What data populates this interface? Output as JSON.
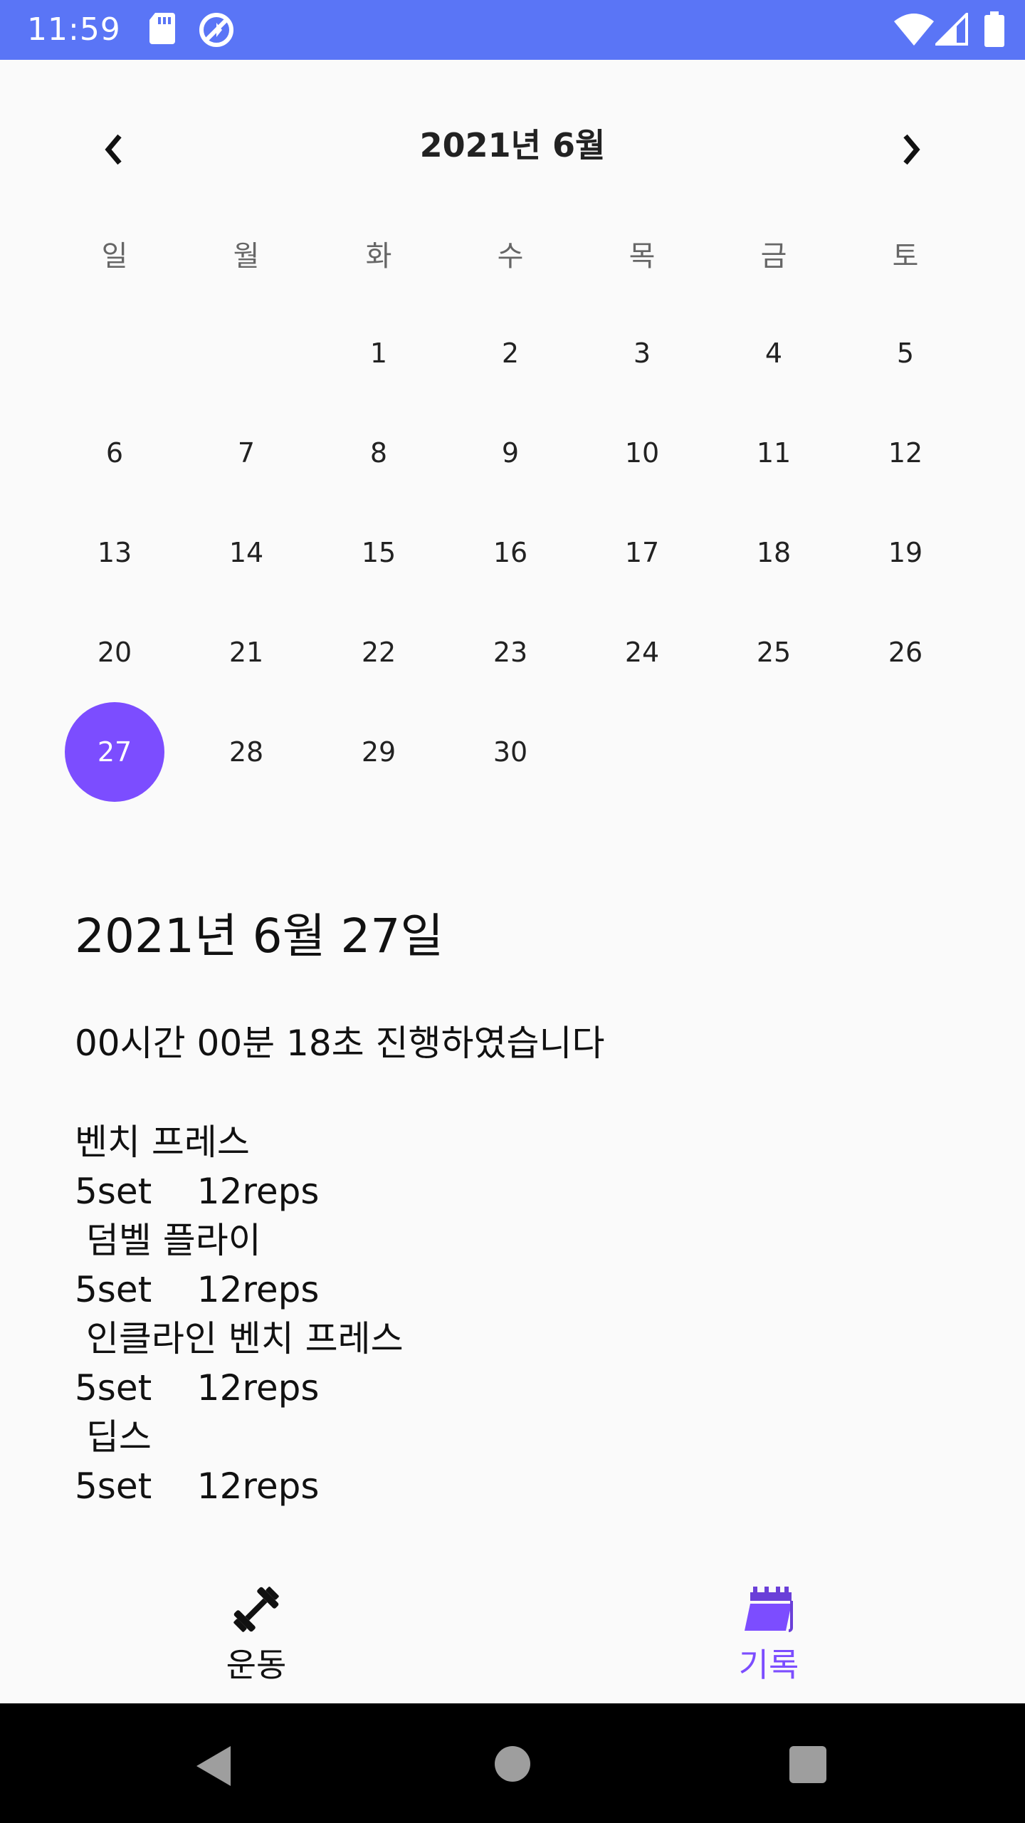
{
  "status_bar": {
    "time": "11:59",
    "background": "#5a75f6",
    "icons": [
      "sd-card-icon",
      "sync-icon",
      "wifi-icon",
      "signal-icon",
      "battery-icon"
    ]
  },
  "calendar": {
    "month_title": "2021년 6월",
    "prev_icon": "chevron-left-icon",
    "next_icon": "chevron-right-icon",
    "weekdays": [
      "일",
      "월",
      "화",
      "수",
      "목",
      "금",
      "토"
    ],
    "weeks": [
      [
        "",
        "",
        "1",
        "2",
        "3",
        "4",
        "5"
      ],
      [
        "6",
        "7",
        "8",
        "9",
        "10",
        "11",
        "12"
      ],
      [
        "13",
        "14",
        "15",
        "16",
        "17",
        "18",
        "19"
      ],
      [
        "20",
        "21",
        "22",
        "23",
        "24",
        "25",
        "26"
      ],
      [
        "27",
        "28",
        "29",
        "30",
        "",
        "",
        ""
      ]
    ],
    "selected_day": "27",
    "selected_color": "#7c4dff"
  },
  "detail": {
    "date": "2021년 6월 27일",
    "duration": "00시간 00분 18초 진행하였습니다",
    "lines": [
      "벤치 프레스",
      "5set    12reps",
      " 덤벨 플라이",
      "5set    12reps",
      " 인클라인 벤치 프레스",
      "5set    12reps",
      " 딥스",
      "5set    12reps"
    ]
  },
  "bottom_nav": {
    "items": [
      {
        "label": "운동",
        "icon": "dumbbell-icon",
        "active": false
      },
      {
        "label": "기록",
        "icon": "calendar-icon",
        "active": true
      }
    ],
    "active_color": "#7c4dff",
    "inactive_color": "#111111"
  },
  "system_nav": {
    "icons": [
      "back-icon",
      "home-icon",
      "recents-icon"
    ]
  }
}
